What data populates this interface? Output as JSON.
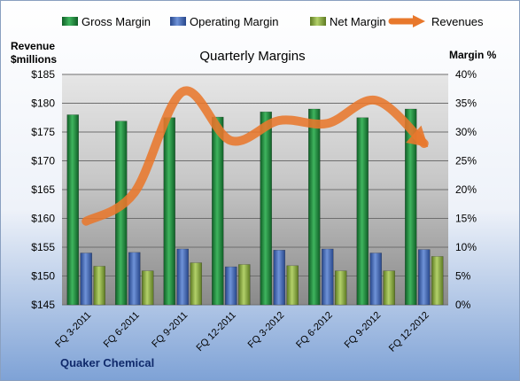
{
  "chart_data": {
    "type": "bar",
    "title": "Quarterly Margins",
    "source_label": "Quaker Chemical",
    "left_axis": {
      "label_line1": "Revenue",
      "label_line2": "$millions",
      "ylim": [
        145,
        185
      ],
      "ticks": [
        "$145",
        "$150",
        "$155",
        "$160",
        "$165",
        "$170",
        "$175",
        "$180",
        "$185"
      ]
    },
    "right_axis": {
      "label": "Margin %",
      "ylim": [
        0,
        40
      ],
      "ticks": [
        "0%",
        "5%",
        "10%",
        "15%",
        "20%",
        "25%",
        "30%",
        "35%",
        "40%"
      ]
    },
    "categories": [
      "FQ 3-2011",
      "FQ 6-2011",
      "FQ 9-2011",
      "FQ 12-2011",
      "FQ 3-2012",
      "FQ 6-2012",
      "FQ 9-2012",
      "FQ 12-2012"
    ],
    "series": [
      {
        "name": "Gross Margin",
        "axis": "right",
        "kind": "bar",
        "color": "#1f8a3c",
        "values": [
          33.0,
          31.9,
          32.5,
          32.6,
          33.5,
          34.0,
          32.5,
          34.0
        ]
      },
      {
        "name": "Operating Margin",
        "axis": "right",
        "kind": "bar",
        "color": "#3f66b8",
        "values": [
          9.0,
          9.1,
          9.7,
          6.6,
          9.5,
          9.7,
          9.0,
          9.6
        ]
      },
      {
        "name": "Net Margin",
        "axis": "right",
        "kind": "bar",
        "color": "#8fb249",
        "values": [
          6.7,
          5.9,
          7.3,
          7.0,
          6.8,
          5.9,
          5.9,
          8.4
        ]
      },
      {
        "name": "Revenues",
        "axis": "left",
        "kind": "line",
        "color": "#e8782c",
        "values": [
          159.5,
          164.5,
          182.0,
          173.5,
          177.0,
          176.5,
          180.5,
          173.0
        ]
      }
    ],
    "grid": true,
    "legend_position": "top"
  }
}
